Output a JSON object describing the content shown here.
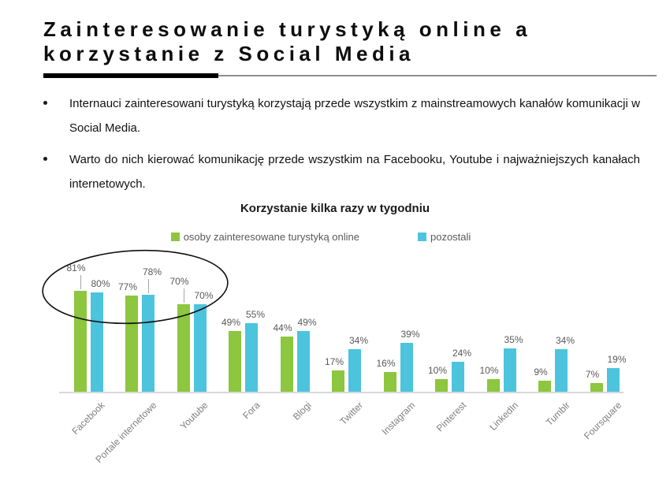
{
  "header": {
    "title_line1": "Zainteresowanie turystyką online a",
    "title_line2": "korzystanie z Social Media"
  },
  "bullets": [
    "Internauci zainteresowani turystyką korzystają przede wszystkim z mainstreamowych kanałów komunikacji w Social Media.",
    "Warto do nich kierować komunikację przede wszystkim na Facebooku, Youtube i najważniejszych kanałach internetowych."
  ],
  "chart_data": {
    "type": "bar",
    "title": "Korzystanie kilka razy w tygodniu",
    "categories": [
      "Facebook",
      "Portale internetowe",
      "Youtube",
      "Fora",
      "Blogi",
      "Twitter",
      "Instagram",
      "Pinterest",
      "LinkedIn",
      "Tumblr",
      "Foursquare"
    ],
    "series": [
      {
        "name": "osoby zainteresowane turystyką online",
        "color": "#8dc63f",
        "values": [
          81,
          77,
          70,
          49,
          44,
          17,
          16,
          10,
          10,
          9,
          7
        ]
      },
      {
        "name": "pozostali",
        "color": "#4cc4dd",
        "values": [
          80,
          78,
          70,
          55,
          49,
          34,
          39,
          24,
          35,
          34,
          19
        ]
      }
    ],
    "value_suffix": "%",
    "ylim": [
      0,
      100
    ],
    "grid": false,
    "legend_position": "top",
    "value_labels": true,
    "annotation": {
      "type": "ellipse",
      "around_categories": [
        "Facebook",
        "Portale internetowe",
        "Youtube"
      ]
    }
  },
  "colors": {
    "series1": "#8dc63f",
    "series2": "#4cc4dd",
    "axis_line": "#d9d9d9",
    "value_label": "#595959",
    "category_label": "#7f7f7f",
    "legend_text": "#595959",
    "heading_text": "#0d0d0d",
    "ellipse_stroke": "#111111"
  }
}
